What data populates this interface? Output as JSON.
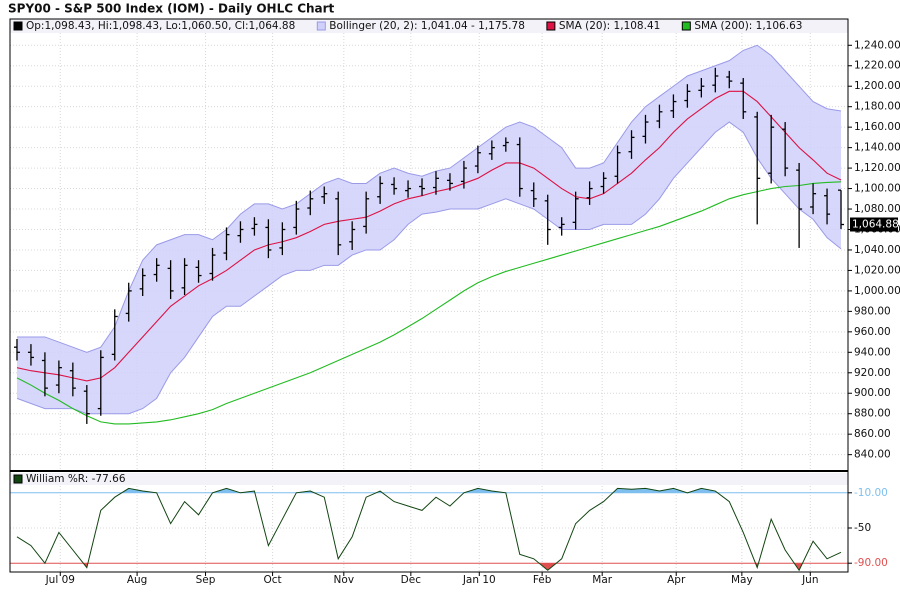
{
  "chart_data": [
    {
      "type": "ohlc",
      "title": "SPY00 - S&P 500 Index (IOM) - Daily OHLC Chart",
      "ohlc_name": "Op:1,098.43, Hi:1,098.43, Lo:1,060.50, Cl:1,064.88",
      "color": "#000000",
      "ohlc": [
        [
          945,
          953,
          932,
          940
        ],
        [
          940,
          948,
          927,
          935
        ],
        [
          932,
          940,
          897,
          905
        ],
        [
          908,
          932,
          900,
          925
        ],
        [
          922,
          930,
          897,
          905
        ],
        [
          902,
          908,
          870,
          880
        ],
        [
          885,
          942,
          878,
          935
        ],
        [
          938,
          982,
          932,
          975
        ],
        [
          978,
          1008,
          970,
          1000
        ],
        [
          1002,
          1022,
          995,
          1015
        ],
        [
          1016,
          1032,
          1009,
          1025
        ],
        [
          1022,
          1030,
          992,
          1000
        ],
        [
          1003,
          1032,
          996,
          1025
        ],
        [
          1023,
          1030,
          1008,
          1015
        ],
        [
          1017,
          1042,
          1010,
          1035
        ],
        [
          1037,
          1062,
          1030,
          1055
        ],
        [
          1054,
          1068,
          1047,
          1060
        ],
        [
          1061,
          1072,
          1054,
          1065
        ],
        [
          1062,
          1070,
          1032,
          1040
        ],
        [
          1042,
          1067,
          1035,
          1060
        ],
        [
          1062,
          1088,
          1055,
          1080
        ],
        [
          1081,
          1098,
          1074,
          1090
        ],
        [
          1092,
          1102,
          1085,
          1095
        ],
        [
          1090,
          1097,
          1035,
          1045
        ],
        [
          1048,
          1068,
          1040,
          1060
        ],
        [
          1063,
          1097,
          1056,
          1090
        ],
        [
          1092,
          1112,
          1085,
          1105
        ],
        [
          1104,
          1111,
          1094,
          1100
        ],
        [
          1098,
          1108,
          1091,
          1100
        ],
        [
          1102,
          1110,
          1093,
          1100
        ],
        [
          1101,
          1117,
          1094,
          1110
        ],
        [
          1108,
          1115,
          1098,
          1105
        ],
        [
          1107,
          1127,
          1100,
          1120
        ],
        [
          1122,
          1142,
          1115,
          1135
        ],
        [
          1134,
          1147,
          1128,
          1140
        ],
        [
          1142,
          1150,
          1136,
          1145
        ],
        [
          1143,
          1150,
          1092,
          1100
        ],
        [
          1098,
          1106,
          1082,
          1090
        ],
        [
          1088,
          1094,
          1045,
          1060
        ],
        [
          1062,
          1072,
          1054,
          1065
        ],
        [
          1067,
          1097,
          1060,
          1090
        ],
        [
          1091,
          1107,
          1084,
          1100
        ],
        [
          1102,
          1116,
          1095,
          1110
        ],
        [
          1112,
          1142,
          1105,
          1135
        ],
        [
          1136,
          1157,
          1129,
          1150
        ],
        [
          1151,
          1172,
          1144,
          1165
        ],
        [
          1166,
          1182,
          1159,
          1175
        ],
        [
          1176,
          1192,
          1169,
          1185
        ],
        [
          1186,
          1202,
          1179,
          1195
        ],
        [
          1196,
          1208,
          1189,
          1200
        ],
        [
          1201,
          1218,
          1194,
          1210
        ],
        [
          1209,
          1215,
          1198,
          1205
        ],
        [
          1203,
          1208,
          1168,
          1175
        ],
        [
          1170,
          1175,
          1065,
          1110
        ],
        [
          1115,
          1172,
          1105,
          1160
        ],
        [
          1158,
          1165,
          1112,
          1120
        ],
        [
          1118,
          1125,
          1042,
          1080
        ],
        [
          1082,
          1105,
          1075,
          1095
        ],
        [
          1093,
          1100,
          1065,
          1075
        ],
        [
          1098.43,
          1098.43,
          1060.5,
          1064.88
        ]
      ],
      "series": [
        {
          "name": "Bollinger (20, 2): 1,041.04 - 1,175.78",
          "color": "#9a9ae8",
          "upper": [
            955,
            955,
            955,
            950,
            945,
            940,
            945,
            965,
            1000,
            1030,
            1045,
            1050,
            1055,
            1055,
            1050,
            1060,
            1075,
            1085,
            1085,
            1080,
            1085,
            1095,
            1105,
            1110,
            1105,
            1105,
            1115,
            1120,
            1115,
            1112,
            1117,
            1120,
            1130,
            1140,
            1150,
            1160,
            1165,
            1160,
            1150,
            1140,
            1120,
            1120,
            1125,
            1145,
            1165,
            1180,
            1190,
            1200,
            1210,
            1215,
            1220,
            1225,
            1235,
            1240,
            1230,
            1215,
            1200,
            1185,
            1178,
            1175.78
          ],
          "lower": [
            895,
            890,
            885,
            885,
            885,
            880,
            880,
            880,
            880,
            885,
            895,
            920,
            935,
            955,
            975,
            985,
            985,
            995,
            1005,
            1015,
            1020,
            1020,
            1025,
            1025,
            1035,
            1040,
            1040,
            1050,
            1065,
            1075,
            1077,
            1080,
            1080,
            1080,
            1085,
            1090,
            1085,
            1080,
            1070,
            1060,
            1060,
            1060,
            1065,
            1065,
            1065,
            1075,
            1090,
            1110,
            1125,
            1140,
            1155,
            1165,
            1155,
            1130,
            1110,
            1095,
            1080,
            1070,
            1052,
            1041.04
          ]
        },
        {
          "name": "SMA (20): 1,108.41",
          "color": "#dd1144",
          "values": [
            925,
            922,
            920,
            918,
            915,
            912,
            915,
            925,
            940,
            955,
            970,
            985,
            995,
            1005,
            1012,
            1020,
            1030,
            1040,
            1045,
            1048,
            1052,
            1058,
            1065,
            1068,
            1070,
            1072,
            1078,
            1085,
            1090,
            1093,
            1097,
            1100,
            1105,
            1110,
            1118,
            1125,
            1125,
            1120,
            1110,
            1100,
            1092,
            1090,
            1095,
            1105,
            1115,
            1128,
            1140,
            1155,
            1168,
            1178,
            1188,
            1195,
            1195,
            1185,
            1170,
            1155,
            1140,
            1128,
            1115,
            1108.41
          ]
        },
        {
          "name": "SMA (200): 1,106.63",
          "color": "#22bb22",
          "values": [
            915,
            908,
            900,
            893,
            885,
            878,
            872,
            870,
            870,
            871,
            872,
            874,
            877,
            880,
            884,
            890,
            895,
            900,
            905,
            910,
            915,
            920,
            926,
            932,
            938,
            944,
            950,
            957,
            965,
            973,
            982,
            991,
            1000,
            1008,
            1014,
            1019,
            1023,
            1027,
            1031,
            1035,
            1039,
            1043,
            1047,
            1051,
            1055,
            1059,
            1063,
            1068,
            1073,
            1078,
            1084,
            1090,
            1094,
            1097,
            1100,
            1102,
            1103,
            1105,
            1106,
            1106.63
          ]
        }
      ],
      "last_price": {
        "value": 1064.88,
        "label": "1,064.88"
      },
      "xlim": [
        -0.5,
        59.5
      ],
      "xticks": [
        {
          "value": 3.1,
          "label": "Jul 09"
        },
        {
          "value": 8.6,
          "label": "Aug"
        },
        {
          "value": 13.5,
          "label": "Sep"
        },
        {
          "value": 18.3,
          "label": "Oct"
        },
        {
          "value": 23.4,
          "label": "Nov"
        },
        {
          "value": 28.2,
          "label": "Dec"
        },
        {
          "value": 33.1,
          "label": "Jan 10"
        },
        {
          "value": 37.6,
          "label": "Feb"
        },
        {
          "value": 41.9,
          "label": "Mar"
        },
        {
          "value": 47.2,
          "label": "Apr"
        },
        {
          "value": 51.9,
          "label": "May"
        },
        {
          "value": 56.8,
          "label": "Jun"
        }
      ],
      "ylim": [
        825,
        1252
      ],
      "yticks": [
        {
          "value": 840,
          "label": "840.00"
        },
        {
          "value": 860,
          "label": "860.00"
        },
        {
          "value": 880,
          "label": "880.00"
        },
        {
          "value": 900,
          "label": "900.00"
        },
        {
          "value": 920,
          "label": "920.00"
        },
        {
          "value": 940,
          "label": "940.00"
        },
        {
          "value": 960,
          "label": "960.00"
        },
        {
          "value": 980,
          "label": "980.00"
        },
        {
          "value": 1000,
          "label": "1,000.00"
        },
        {
          "value": 1020,
          "label": "1,020.00"
        },
        {
          "value": 1040,
          "label": "1,040.00"
        },
        {
          "value": 1060,
          "label": "1,060.00"
        },
        {
          "value": 1080,
          "label": "1,080.00"
        },
        {
          "value": 1100,
          "label": "1,100.00"
        },
        {
          "value": 1120,
          "label": "1,120.00"
        },
        {
          "value": 1140,
          "label": "1,140.00"
        },
        {
          "value": 1160,
          "label": "1,160.00"
        },
        {
          "value": 1180,
          "label": "1,180.00"
        },
        {
          "value": 1200,
          "label": "1,200.00"
        },
        {
          "value": 1220,
          "label": "1,220.00"
        },
        {
          "value": 1240,
          "label": "1,240.00"
        }
      ],
      "grid": true
    },
    {
      "type": "line",
      "name": "William %R: -77.66",
      "color": "#114411",
      "values": [
        -60,
        -70,
        -90,
        -55,
        -75,
        -95,
        -30,
        -15,
        -5,
        -8,
        -10,
        -45,
        -20,
        -35,
        -10,
        -5,
        -10,
        -8,
        -70,
        -40,
        -10,
        -8,
        -15,
        -85,
        -60,
        -15,
        -8,
        -20,
        -25,
        -30,
        -15,
        -25,
        -10,
        -5,
        -8,
        -10,
        -80,
        -85,
        -98,
        -85,
        -45,
        -30,
        -20,
        -5,
        -6,
        -5,
        -8,
        -5,
        -10,
        -5,
        -8,
        -20,
        -55,
        -95,
        -40,
        -75,
        -98,
        -65,
        -85,
        -77.66
      ],
      "xlim": [
        -0.5,
        59.5
      ],
      "ylim": [
        -100,
        0
      ],
      "yticks": [
        {
          "value": -10,
          "label": "-10.00"
        },
        -50,
        {
          "value": -90,
          "label": "-90.00"
        }
      ],
      "overbought_color": "#7fbfef",
      "oversold_color": "#e05050"
    }
  ]
}
